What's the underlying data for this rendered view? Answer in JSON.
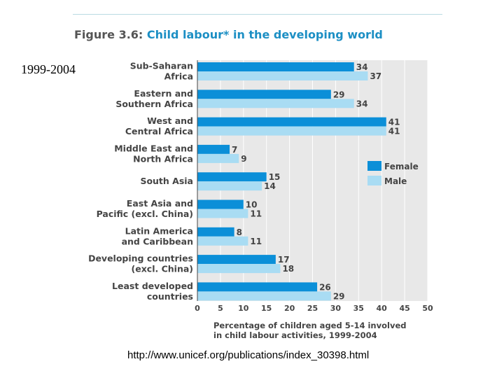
{
  "page": {
    "figure_label": "Figure 3.6:",
    "figure_title": "Child labour* in the developing world",
    "year_range": "1999-2004",
    "source_url": "http://www.unicef.org/publications/index_30398.html"
  },
  "colors": {
    "female": "#0b8fd8",
    "male": "#a9dcf3",
    "plot_bg": "#e8e8e8",
    "grid": "#ffffff",
    "text": "#444444",
    "title_accent": "#1c8fc4"
  },
  "chart_data": {
    "type": "bar",
    "orientation": "horizontal",
    "title": "Child labour* in the developing world",
    "categories": [
      [
        "Sub-Saharan",
        "Africa"
      ],
      [
        "Eastern and",
        "Southern Africa"
      ],
      [
        "West and",
        "Central Africa"
      ],
      [
        "Middle East and",
        "North Africa"
      ],
      [
        "South Asia"
      ],
      [
        "East Asia and",
        "Pacific (excl. China)"
      ],
      [
        "Latin America",
        "and Caribbean"
      ],
      [
        "Developing countries",
        "(excl. China)"
      ],
      [
        "Least developed",
        "countries"
      ]
    ],
    "series": [
      {
        "name": "Female",
        "values": [
          34,
          29,
          41,
          7,
          15,
          10,
          8,
          17,
          26
        ]
      },
      {
        "name": "Male",
        "values": [
          37,
          34,
          41,
          9,
          14,
          11,
          11,
          18,
          29
        ]
      }
    ],
    "xlim": [
      0,
      50
    ],
    "xticks": [
      0,
      5,
      10,
      15,
      20,
      25,
      30,
      35,
      40,
      45,
      50
    ],
    "xlabel": [
      "Percentage of children aged 5-14 involved",
      "in child labour activities, 1999-2004"
    ],
    "legend": [
      "Female",
      "Male"
    ],
    "legend_position": "right",
    "grid": true
  }
}
